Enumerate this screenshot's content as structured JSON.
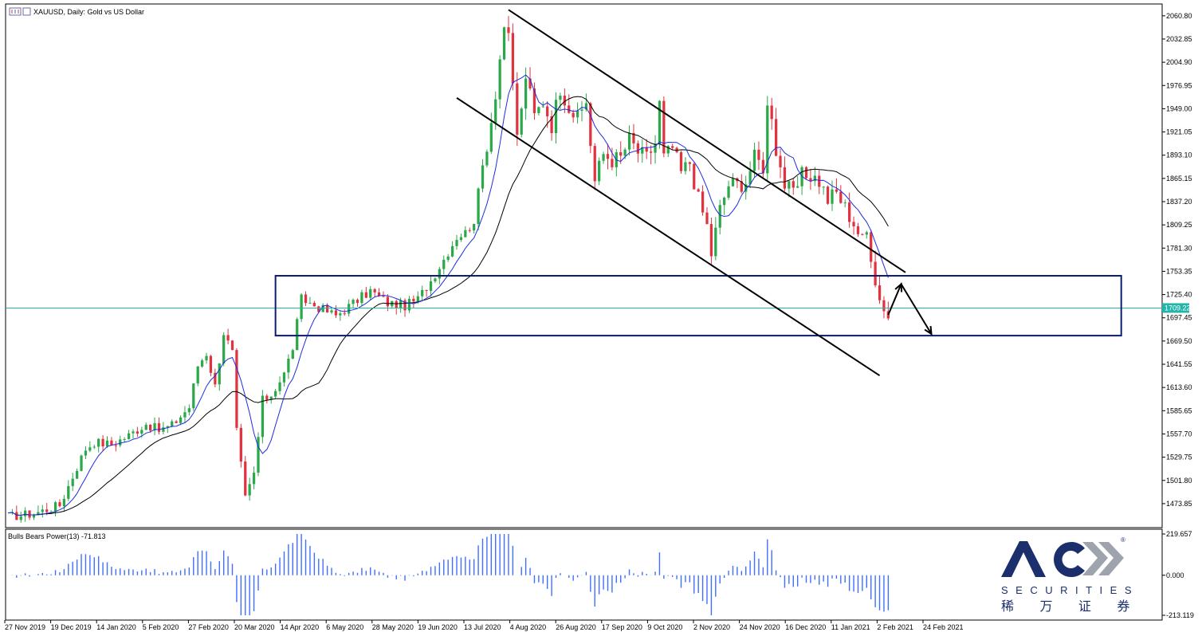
{
  "chart_data": {
    "type": "candlestick",
    "symbol_label": "XAUUSD, Daily:  Gold vs US Dollar",
    "price_axis": {
      "min": 1445,
      "max": 2075,
      "ticks": [
        "2060.80",
        "2032.85",
        "2004.90",
        "1976.95",
        "1949.00",
        "1921.05",
        "1893.10",
        "1865.15",
        "1837.20",
        "1809.25",
        "1781.30",
        "1753.35",
        "1725.40",
        "1697.45",
        "1669.50",
        "1641.55",
        "1613.60",
        "1585.65",
        "1557.70",
        "1529.75",
        "1501.80",
        "1473.85"
      ],
      "current_price": "1709.22"
    },
    "time_axis": {
      "labels": [
        "27 Nov 2019",
        "19 Dec 2019",
        "14 Jan 2020",
        "5 Feb 2020",
        "27 Feb 2020",
        "20 Mar 2020",
        "14 Apr 2020",
        "6 May 2020",
        "28 May 2020",
        "19 Jun 2020",
        "13 Jul 2020",
        "4 Aug 2020",
        "26 Aug 2020",
        "17 Sep 2020",
        "9 Oct 2020",
        "2 Nov 2020",
        "24 Nov 2020",
        "16 Dec 2020",
        "11 Jan 2021",
        "2 Feb 2021",
        "24 Feb 2021"
      ]
    },
    "price_path": [
      [
        0,
        1458
      ],
      [
        6,
        1462
      ],
      [
        12,
        1472
      ],
      [
        16,
        1518
      ],
      [
        18,
        1540
      ],
      [
        20,
        1548
      ],
      [
        24,
        1545
      ],
      [
        28,
        1556
      ],
      [
        32,
        1570
      ],
      [
        35,
        1562
      ],
      [
        38,
        1568
      ],
      [
        42,
        1590
      ],
      [
        44,
        1640
      ],
      [
        46,
        1655
      ],
      [
        48,
        1615
      ],
      [
        50,
        1680
      ],
      [
        52,
        1655
      ],
      [
        53,
        1560
      ],
      [
        55,
        1480
      ],
      [
        57,
        1510
      ],
      [
        59,
        1598
      ],
      [
        61,
        1605
      ],
      [
        64,
        1630
      ],
      [
        66,
        1662
      ],
      [
        68,
        1720
      ],
      [
        72,
        1710
      ],
      [
        76,
        1700
      ],
      [
        80,
        1715
      ],
      [
        84,
        1730
      ],
      [
        88,
        1715
      ],
      [
        92,
        1712
      ],
      [
        95,
        1720
      ],
      [
        98,
        1742
      ],
      [
        101,
        1768
      ],
      [
        104,
        1795
      ],
      [
        106,
        1800
      ],
      [
        108,
        1815
      ],
      [
        110,
        1880
      ],
      [
        112,
        1935
      ],
      [
        113,
        1970
      ],
      [
        115,
        2050
      ],
      [
        116,
        2030
      ],
      [
        117,
        1975
      ],
      [
        118,
        1920
      ],
      [
        119,
        1945
      ],
      [
        120,
        1990
      ],
      [
        122,
        1940
      ],
      [
        124,
        1958
      ],
      [
        126,
        1930
      ],
      [
        128,
        1975
      ],
      [
        130,
        1952
      ],
      [
        132,
        1936
      ],
      [
        134,
        1958
      ],
      [
        135,
        1908
      ],
      [
        136,
        1862
      ],
      [
        138,
        1895
      ],
      [
        140,
        1888
      ],
      [
        142,
        1890
      ],
      [
        144,
        1912
      ],
      [
        146,
        1897
      ],
      [
        148,
        1890
      ],
      [
        150,
        1908
      ],
      [
        151,
        1955
      ],
      [
        152,
        1890
      ],
      [
        154,
        1902
      ],
      [
        156,
        1872
      ],
      [
        158,
        1885
      ],
      [
        160,
        1840
      ],
      [
        162,
        1808
      ],
      [
        163,
        1775
      ],
      [
        165,
        1828
      ],
      [
        167,
        1858
      ],
      [
        169,
        1858
      ],
      [
        171,
        1862
      ],
      [
        173,
        1890
      ],
      [
        175,
        1880
      ],
      [
        176,
        1950
      ],
      [
        177,
        1945
      ],
      [
        178,
        1900
      ],
      [
        180,
        1858
      ],
      [
        182,
        1845
      ],
      [
        184,
        1868
      ],
      [
        186,
        1870
      ],
      [
        188,
        1862
      ],
      [
        190,
        1840
      ],
      [
        192,
        1848
      ],
      [
        194,
        1830
      ],
      [
        196,
        1812
      ],
      [
        198,
        1790
      ],
      [
        199,
        1800
      ],
      [
        200,
        1775
      ],
      [
        201,
        1745
      ],
      [
        202,
        1720
      ],
      [
        203,
        1712
      ],
      [
        204,
        1700
      ]
    ],
    "indicator": {
      "label": "Bulls Bears Power(13) -71.813",
      "axis_ticks": [
        "219.657",
        "0.000",
        "-213.119"
      ],
      "min": -213.119,
      "max": 219.657
    },
    "box_range": {
      "low": 1676,
      "high": 1748
    },
    "channel_upper": [
      [
        116,
        2068
      ],
      [
        208,
        1752
      ]
    ],
    "channel_lower": [
      [
        104,
        1962
      ],
      [
        202,
        1628
      ]
    ],
    "forecast_path": [
      [
        204,
        1701
      ],
      [
        207,
        1738
      ],
      [
        214,
        1678
      ]
    ],
    "colors": {
      "up": "#2aa84a",
      "down": "#e0323f",
      "ma_fast": "#1d2de0",
      "ma_slow": "#000000",
      "current_line": "#22b4a8",
      "box": "#0c1c6e",
      "histogram": "#3f6fff"
    }
  },
  "logo": {
    "brand": "ACY",
    "trademark": "®",
    "tagline": "SECURITIES",
    "chinese": "稀 万 证 券"
  }
}
